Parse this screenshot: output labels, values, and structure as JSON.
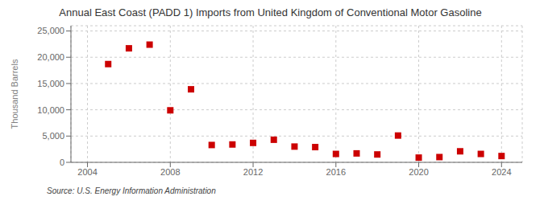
{
  "chart_data": {
    "type": "scatter",
    "title": "Annual East Coast (PADD 1) Imports from United Kingdom of Conventional Motor Gasoline",
    "y_label": "Thousand Barrels",
    "annotations": [
      "Source: U.S. Energy Information Administration"
    ],
    "x": [
      2005,
      2006,
      2007,
      2008,
      2009,
      2010,
      2011,
      2012,
      2013,
      2014,
      2015,
      2016,
      2017,
      2018,
      2019,
      2020,
      2021,
      2022,
      2023,
      2024
    ],
    "values": [
      18700,
      21700,
      22400,
      9900,
      13900,
      3300,
      3400,
      3700,
      4300,
      3000,
      2900,
      1600,
      1700,
      1500,
      5100,
      900,
      1000,
      2100,
      1600,
      1200
    ],
    "color": "#cc0000",
    "marker": "square",
    "xlim": [
      2003.2,
      2025.0
    ],
    "ylim": [
      0,
      26000
    ],
    "xticks": [
      2004,
      2008,
      2012,
      2016,
      2020,
      2024
    ],
    "yticks": [
      0,
      {
        "value": 5000,
        "label": "5,000"
      },
      {
        "value": 10000,
        "label": "10,000"
      },
      {
        "value": 15000,
        "label": "15,000"
      },
      {
        "value": 20000,
        "label": "20,000"
      },
      {
        "value": 25000,
        "label": "25,000"
      }
    ],
    "grid": true
  }
}
